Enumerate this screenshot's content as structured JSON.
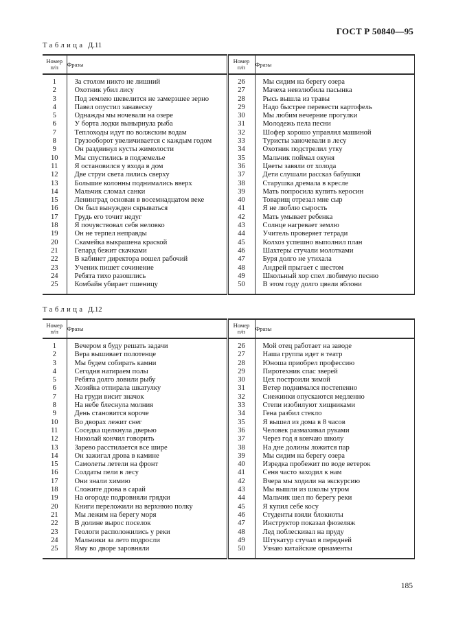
{
  "document": {
    "standard": "ГОСТ Р 50840—95",
    "page_number": "185"
  },
  "tables": [
    {
      "title_word": "Таблица",
      "title_number": "Д.11",
      "header_num": "Номер",
      "header_num_sub": "п/п",
      "header_phrase": "Фразы",
      "rows": [
        {
          "n1": "1",
          "p1": "За столом никто не лишний",
          "n2": "26",
          "p2": "Мы сидим на берегу озера"
        },
        {
          "n1": "2",
          "p1": "Охотник убил лису",
          "n2": "27",
          "p2": "Мачеха невзлюбила пасынка"
        },
        {
          "n1": "3",
          "p1": "Под землею шевелится не замерзшее зерно",
          "n2": "28",
          "p2": "Рысь вышла из травы"
        },
        {
          "n1": "4",
          "p1": "Павел опустил занавеску",
          "n2": "29",
          "p2": "Надо быстрее перевести картофель"
        },
        {
          "n1": "5",
          "p1": "Однажды мы ночевали на озере",
          "n2": "30",
          "p2": "Мы любим вечерние прогулки"
        },
        {
          "n1": "6",
          "p1": "У борта лодки вынырнула рыба",
          "n2": "31",
          "p2": "Молодежь пела песни"
        },
        {
          "n1": "7",
          "p1": "Теплоходы идут по волжским водам",
          "n2": "32",
          "p2": "Шофер хорошо управлял машиной"
        },
        {
          "n1": "8",
          "p1": "Грузооборот увеличивается с каждым годом",
          "n2": "33",
          "p2": "Туристы заночевали в лесу"
        },
        {
          "n1": "9",
          "p1": "Он раздвинул кусты жимолости",
          "n2": "34",
          "p2": "Охотник подстрелил утку"
        },
        {
          "n1": "10",
          "p1": "Мы спустились в подземелье",
          "n2": "35",
          "p2": "Мальчик поймал окуня"
        },
        {
          "n1": "11",
          "p1": "Я остановился у входа в дом",
          "n2": "36",
          "p2": "Цветы завяли от холода"
        },
        {
          "n1": "12",
          "p1": "Две струи света лились сверху",
          "n2": "37",
          "p2": "Дети слушали рассказ бабушки"
        },
        {
          "n1": "13",
          "p1": "Большие колонны поднимались вверх",
          "n2": "38",
          "p2": "Старушка дремала в кресле"
        },
        {
          "n1": "14",
          "p1": "Мальчик сломал санки",
          "n2": "39",
          "p2": "Мать попросила купить керосин"
        },
        {
          "n1": "15",
          "p1": "Ленинград основан в восемнадцатом веке",
          "n2": "40",
          "p2": "Товарищ отрезал мне сыр"
        },
        {
          "n1": "16",
          "p1": "Он был вынужден скрываться",
          "n2": "41",
          "p2": "Я не люблю сырость"
        },
        {
          "n1": "17",
          "p1": "Грудь его точит недуг",
          "n2": "42",
          "p2": "Мать умывает ребенка"
        },
        {
          "n1": "18",
          "p1": "Я почувствовал себя неловко",
          "n2": "43",
          "p2": "Солнце нагревает землю"
        },
        {
          "n1": "19",
          "p1": "Он не терпел неправды",
          "n2": "44",
          "p2": "Учитель проверяет тетради"
        },
        {
          "n1": "20",
          "p1": "Скамейка выкрашена краской",
          "n2": "45",
          "p2": "Колхоз успешно выполнил план"
        },
        {
          "n1": "21",
          "p1": "Гепард бежит скачками",
          "n2": "46",
          "p2": "Шахтеры стучали молотками"
        },
        {
          "n1": "22",
          "p1": "В кабинет директора вошел рабочий",
          "n2": "47",
          "p2": "Буря долго не утихала"
        },
        {
          "n1": "23",
          "p1": "Ученик пишет сочинение",
          "n2": "48",
          "p2": "Андрей прыгает с шестом"
        },
        {
          "n1": "24",
          "p1": "Ребята тихо разошлись",
          "n2": "49",
          "p2": "Школьный хор спел любимую песню"
        },
        {
          "n1": "25",
          "p1": "Комбайн убирает пшеницу",
          "n2": "50",
          "p2": "В этом году долго цвели яблони"
        }
      ]
    },
    {
      "title_word": "Таблица",
      "title_number": "Д.12",
      "header_num": "Номер",
      "header_num_sub": "п/п",
      "header_phrase": "Фразы",
      "rows": [
        {
          "n1": "1",
          "p1": "Вечером я буду решать задачи",
          "n2": "26",
          "p2": "Мой отец работает на заводе"
        },
        {
          "n1": "2",
          "p1": "Вера вышивает полотенце",
          "n2": "27",
          "p2": "Наша группа идет в театр"
        },
        {
          "n1": "3",
          "p1": "Мы будем собирать камни",
          "n2": "28",
          "p2": "Юноша приобрел профессию"
        },
        {
          "n1": "4",
          "p1": "Сегодня натираем полы",
          "n2": "29",
          "p2": "Пиротехник спас зверей"
        },
        {
          "n1": "5",
          "p1": "Ребята долго ловили рыбу",
          "n2": "30",
          "p2": "Цех построили зимой"
        },
        {
          "n1": "6",
          "p1": "Хозяйка отпирала шкатулку",
          "n2": "31",
          "p2": "Ветер поднимался постепенно"
        },
        {
          "n1": "7",
          "p1": "На груди висит значок",
          "n2": "32",
          "p2": "Снежинки опускаются медленно"
        },
        {
          "n1": "8",
          "p1": "На небе блеснула молния",
          "n2": "33",
          "p2": "Степи изобилуют хищниками"
        },
        {
          "n1": "9",
          "p1": "День становится короче",
          "n2": "34",
          "p2": "Гена разбил стекло"
        },
        {
          "n1": "10",
          "p1": "Во дворах лежит снег",
          "n2": "35",
          "p2": "Я вышел из дома в 8 часов"
        },
        {
          "n1": "11",
          "p1": "Соседка щелкнула дверью",
          "n2": "36",
          "p2": "Человек размахивал руками"
        },
        {
          "n1": "12",
          "p1": "Николай кончил говорить",
          "n2": "37",
          "p2": "Через год я кончаю школу"
        },
        {
          "n1": "13",
          "p1": "Зарево расстилается все шире",
          "n2": "38",
          "p2": "На дне долины ложится пар"
        },
        {
          "n1": "14",
          "p1": "Он зажигал дрова в камине",
          "n2": "39",
          "p2": "Мы сидим на берегу озера"
        },
        {
          "n1": "15",
          "p1": "Самолеты летели на фронт",
          "n2": "40",
          "p2": "Изредка пробежит по воде ветерок"
        },
        {
          "n1": "16",
          "p1": "Солдаты пели в лесу",
          "n2": "41",
          "p2": "Сеня часто заходил к нам"
        },
        {
          "n1": "17",
          "p1": "Они знали химию",
          "n2": "42",
          "p2": "Вчера мы ходили на экскурсию"
        },
        {
          "n1": "18",
          "p1": "Сложите дрова в сарай",
          "n2": "43",
          "p2": "Мы вышли из школы утром"
        },
        {
          "n1": "19",
          "p1": "На огороде подровняли грядки",
          "n2": "44",
          "p2": "Мальчик шел по берегу реки"
        },
        {
          "n1": "20",
          "p1": "Книги переложили на верхнюю полку",
          "n2": "45",
          "p2": "Я купил себе косу"
        },
        {
          "n1": "21",
          "p1": "Мы лежим на берегу моря",
          "n2": "46",
          "p2": "Студенты взяли блокноты"
        },
        {
          "n1": "22",
          "p1": "В долине вырос поселок",
          "n2": "47",
          "p2": "Инструктор показал фюзеляж"
        },
        {
          "n1": "23",
          "p1": "Геологи расположились у реки",
          "n2": "48",
          "p2": "Лед поблескивал на пруду"
        },
        {
          "n1": "24",
          "p1": "Мальчики за лето подросли",
          "n2": "49",
          "p2": "Штукатур стучал в передней"
        },
        {
          "n1": "25",
          "p1": "Яму во дворе заровняли",
          "n2": "50",
          "p2": "Узнаю китайские орнаменты"
        }
      ]
    }
  ]
}
